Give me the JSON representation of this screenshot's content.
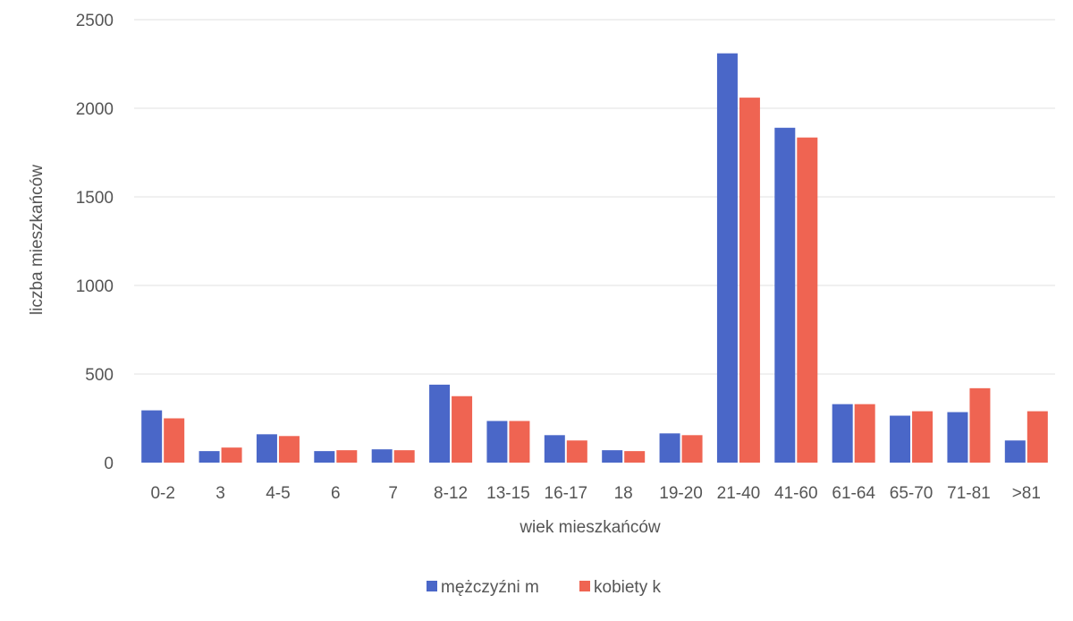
{
  "chart_data": {
    "type": "bar",
    "title": "",
    "xlabel": "wiek mieszkańców",
    "ylabel": "liczba mieszkańców",
    "ylim": [
      0,
      2500
    ],
    "yticks": [
      0,
      500,
      1000,
      1500,
      2000,
      2500
    ],
    "grid": true,
    "legend_position": "bottom",
    "categories": [
      "0-2",
      "3",
      "4-5",
      "6",
      "7",
      "8-12",
      "13-15",
      "16-17",
      "18",
      "19-20",
      "21-40",
      "41-60",
      "61-64",
      "65-70",
      "71-81",
      ">81"
    ],
    "series": [
      {
        "name": "mężczyźni m",
        "color": "#4a67c8",
        "values": [
          295,
          65,
          160,
          65,
          75,
          440,
          235,
          155,
          70,
          165,
          2310,
          1890,
          330,
          265,
          285,
          125
        ]
      },
      {
        "name": "kobiety k",
        "color": "#ef6452",
        "values": [
          250,
          85,
          150,
          70,
          70,
          375,
          235,
          125,
          65,
          155,
          2060,
          1835,
          330,
          290,
          420,
          290
        ]
      }
    ]
  }
}
